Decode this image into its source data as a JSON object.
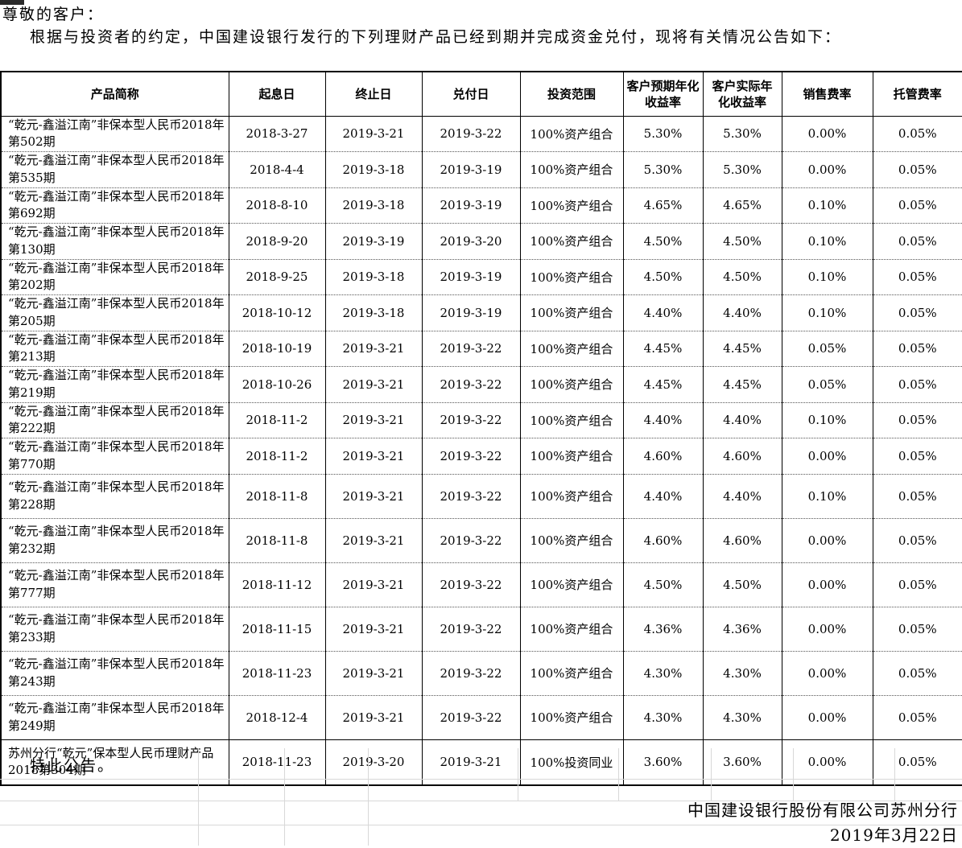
{
  "page": {
    "greeting": "尊敬的客户：",
    "intro": "根据与投资者的约定，中国建设银行发行的下列理财产品已经到期并完成资金兑付，现将有关情况公告如下：",
    "closing": "特此公告。",
    "signature": "中国建设银行股份有限公司苏州分行",
    "date": "2019年3月22日"
  },
  "table": {
    "headers": [
      "产品简称",
      "起息日",
      "终止日",
      "兑付日",
      "投资范围",
      "客户预期年化收益率",
      "客户实际年化收益率",
      "销售费率",
      "托管费率"
    ],
    "rows": [
      [
        "“乾元-鑫溢江南”非保本型人民币2018年第502期",
        "2018-3-27",
        "2019-3-21",
        "2019-3-22",
        "100%资产组合",
        "5.30%",
        "5.30%",
        "0.00%",
        "0.05%"
      ],
      [
        "“乾元-鑫溢江南”非保本型人民币2018年第535期",
        "2018-4-4",
        "2019-3-18",
        "2019-3-19",
        "100%资产组合",
        "5.30%",
        "5.30%",
        "0.00%",
        "0.05%"
      ],
      [
        "“乾元-鑫溢江南”非保本型人民币2018年第692期",
        "2018-8-10",
        "2019-3-18",
        "2019-3-19",
        "100%资产组合",
        "4.65%",
        "4.65%",
        "0.10%",
        "0.05%"
      ],
      [
        "“乾元-鑫溢江南”非保本型人民币2018年第130期",
        "2018-9-20",
        "2019-3-19",
        "2019-3-20",
        "100%资产组合",
        "4.50%",
        "4.50%",
        "0.10%",
        "0.05%"
      ],
      [
        "“乾元-鑫溢江南”非保本型人民币2018年第202期",
        "2018-9-25",
        "2019-3-18",
        "2019-3-19",
        "100%资产组合",
        "4.50%",
        "4.50%",
        "0.10%",
        "0.05%"
      ],
      [
        "“乾元-鑫溢江南”非保本型人民币2018年第205期",
        "2018-10-12",
        "2019-3-18",
        "2019-3-19",
        "100%资产组合",
        "4.40%",
        "4.40%",
        "0.10%",
        "0.05%"
      ],
      [
        "“乾元-鑫溢江南”非保本型人民币2018年第213期",
        "2018-10-19",
        "2019-3-21",
        "2019-3-22",
        "100%资产组合",
        "4.45%",
        "4.45%",
        "0.05%",
        "0.05%"
      ],
      [
        "“乾元-鑫溢江南”非保本型人民币2018年第219期",
        "2018-10-26",
        "2019-3-21",
        "2019-3-22",
        "100%资产组合",
        "4.45%",
        "4.45%",
        "0.05%",
        "0.05%"
      ],
      [
        "“乾元-鑫溢江南”非保本型人民币2018年第222期",
        "2018-11-2",
        "2019-3-21",
        "2019-3-22",
        "100%资产组合",
        "4.40%",
        "4.40%",
        "0.10%",
        "0.05%"
      ],
      [
        "“乾元-鑫溢江南”非保本型人民币2018年第770期",
        "2018-11-2",
        "2019-3-21",
        "2019-3-22",
        "100%资产组合",
        "4.60%",
        "4.60%",
        "0.00%",
        "0.05%"
      ],
      [
        "“乾元-鑫溢江南”非保本型人民币2018年第228期",
        "2018-11-8",
        "2019-3-21",
        "2019-3-22",
        "100%资产组合",
        "4.40%",
        "4.40%",
        "0.10%",
        "0.05%"
      ],
      [
        "“乾元-鑫溢江南”非保本型人民币2018年第232期",
        "2018-11-8",
        "2019-3-21",
        "2019-3-22",
        "100%资产组合",
        "4.60%",
        "4.60%",
        "0.00%",
        "0.05%"
      ],
      [
        "“乾元-鑫溢江南”非保本型人民币2018年第777期",
        "2018-11-12",
        "2019-3-21",
        "2019-3-22",
        "100%资产组合",
        "4.50%",
        "4.50%",
        "0.00%",
        "0.05%"
      ],
      [
        "“乾元-鑫溢江南”非保本型人民币2018年第233期",
        "2018-11-15",
        "2019-3-21",
        "2019-3-22",
        "100%资产组合",
        "4.36%",
        "4.36%",
        "0.00%",
        "0.05%"
      ],
      [
        "“乾元-鑫溢江南”非保本型人民币2018年第243期",
        "2018-11-23",
        "2019-3-21",
        "2019-3-22",
        "100%资产组合",
        "4.30%",
        "4.30%",
        "0.00%",
        "0.05%"
      ],
      [
        "“乾元-鑫溢江南”非保本型人民币2018年第249期",
        "2018-12-4",
        "2019-3-21",
        "2019-3-22",
        "100%资产组合",
        "4.30%",
        "4.30%",
        "0.00%",
        "0.05%"
      ],
      [
        "苏州分行“乾元”保本型人民币理财产品2018第304期",
        "2018-11-23",
        "2019-3-20",
        "2019-3-21",
        "100%投资同业",
        "3.60%",
        "3.60%",
        "0.00%",
        "0.05%"
      ]
    ]
  }
}
